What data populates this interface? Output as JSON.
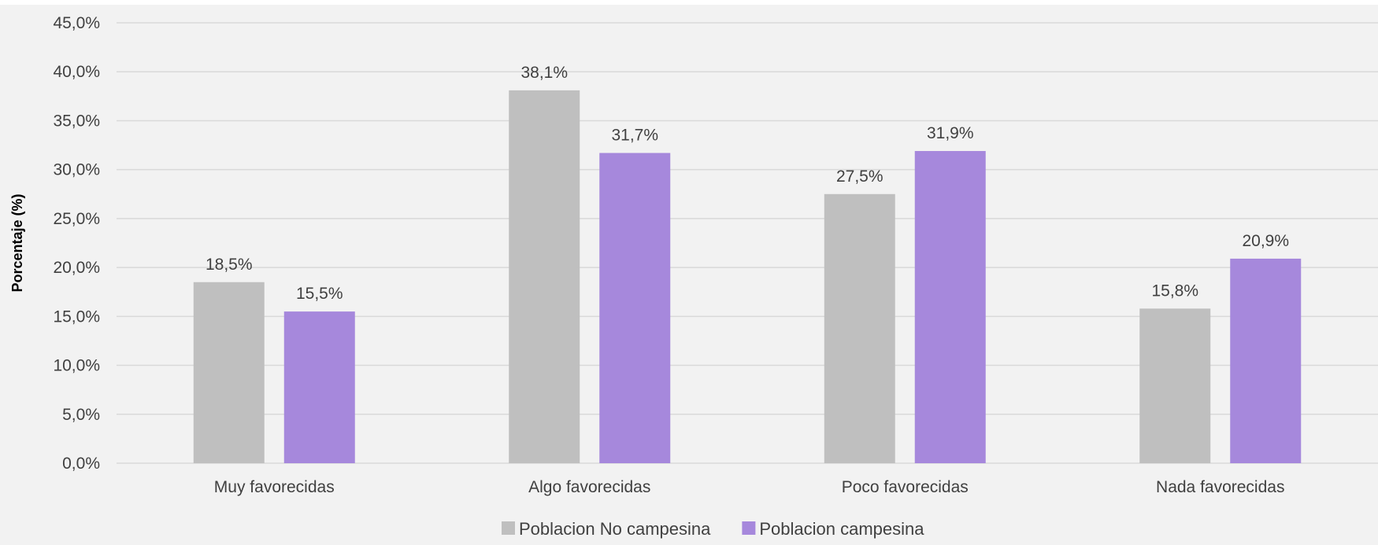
{
  "chart_data": {
    "type": "bar",
    "title": "",
    "xlabel": "",
    "ylabel": "Porcentaje (%)",
    "categories": [
      "Muy favorecidas",
      "Algo favorecidas",
      "Poco favorecidas",
      "Nada favorecidas"
    ],
    "series": [
      {
        "name": "Poblacion No campesina",
        "values": [
          18.5,
          38.1,
          27.5,
          15.8
        ],
        "labels": [
          "18,5%",
          "38,1%",
          "27,5%",
          "15,8%"
        ],
        "color": "#bfbfbf"
      },
      {
        "name": "Poblacion campesina",
        "values": [
          15.5,
          31.7,
          31.9,
          20.9
        ],
        "labels": [
          "15,5%",
          "31,7%",
          "31,9%",
          "20,9%"
        ],
        "color": "#a688dc"
      }
    ],
    "ylim": [
      0,
      45
    ],
    "yticks": [
      0,
      5,
      10,
      15,
      20,
      25,
      30,
      35,
      40,
      45
    ],
    "ytick_labels": [
      "0,0%",
      "5,0%",
      "10,0%",
      "15,0%",
      "20,0%",
      "25,0%",
      "30,0%",
      "35,0%",
      "40,0%",
      "45,0%"
    ],
    "grid": true,
    "legend_position": "bottom",
    "background": "#f2f2f2",
    "gridline_color": "#d9d9d9"
  }
}
